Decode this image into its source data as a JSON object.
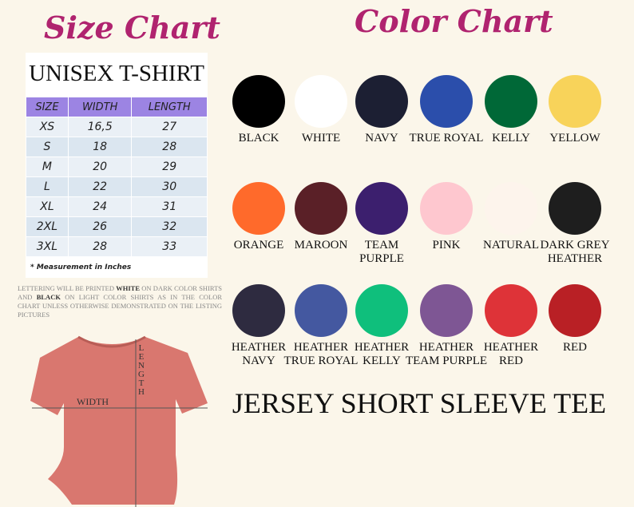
{
  "size_chart": {
    "title": "Size Chart",
    "subtitle": "UNISEX T-SHIRT",
    "table": {
      "header": [
        "SIZE",
        "WIDTH",
        "LENGTH"
      ],
      "rows": [
        [
          "XS",
          "16,5",
          "27"
        ],
        [
          "S",
          "18",
          "28"
        ],
        [
          "M",
          "20",
          "29"
        ],
        [
          "L",
          "22",
          "30"
        ],
        [
          "XL",
          "24",
          "31"
        ],
        [
          "2XL",
          "26",
          "32"
        ],
        [
          "3XL",
          "28",
          "33"
        ]
      ]
    },
    "note": "* Measurement in Inches",
    "lettering_note": [
      "LETTERING WILL BE PRINTED ",
      "WHITE",
      " ON DARK COLOR SHIRTS AND ",
      "BLACK",
      " ON LIGHT COLOR SHIRTS AS IN THE COLOR CHART UNLESS OTHERWISE DEMONSTRATED ON THE LISTING PICTURES"
    ],
    "width_label": "WIDTH",
    "length_label": "LENGTH"
  },
  "color_chart": {
    "title": "Color Chart",
    "colors": [
      {
        "name": [
          "BLACK"
        ],
        "color": "#000000"
      },
      {
        "name": [
          "WHITE"
        ],
        "color": "#ffffff"
      },
      {
        "name": [
          "NAVY"
        ],
        "color": "#1c1f33"
      },
      {
        "name": [
          "TRUE ROYAL"
        ],
        "color": "#2b4eab"
      },
      {
        "name": [
          "KELLY"
        ],
        "color": "#006837"
      },
      {
        "name": [
          "YELLOW"
        ],
        "color": "#f8d35a"
      },
      {
        "name": [
          "ORANGE"
        ],
        "color": "#ff6a2b"
      },
      {
        "name": [
          "MAROON"
        ],
        "color": "#5a2027"
      },
      {
        "name": [
          "TEAM",
          "PURPLE"
        ],
        "color": "#3c1f6e"
      },
      {
        "name": [
          "PINK"
        ],
        "color": "#fec7cf"
      },
      {
        "name": [
          "NATURAL"
        ],
        "color": "#fdf4ec"
      },
      {
        "name": [
          "DARK GREY",
          "HEATHER"
        ],
        "color": "#1e1e1e"
      },
      {
        "name": [
          "HEATHER",
          "NAVY"
        ],
        "color": "#2e2b40"
      },
      {
        "name": [
          "HEATHER",
          "TRUE ROYAL"
        ],
        "color": "#4458a0"
      },
      {
        "name": [
          "HEATHER",
          "KELLY"
        ],
        "color": "#0fbf7c"
      },
      {
        "name": [
          "HEATHER",
          "TEAM PURPLE"
        ],
        "color": "#7e5694"
      },
      {
        "name": [
          "HEATHER",
          "RED"
        ],
        "color": "#de3338"
      },
      {
        "name": [
          "RED"
        ],
        "color": "#b92025"
      }
    ],
    "footer": "JERSEY SHORT SLEEVE TEE"
  }
}
